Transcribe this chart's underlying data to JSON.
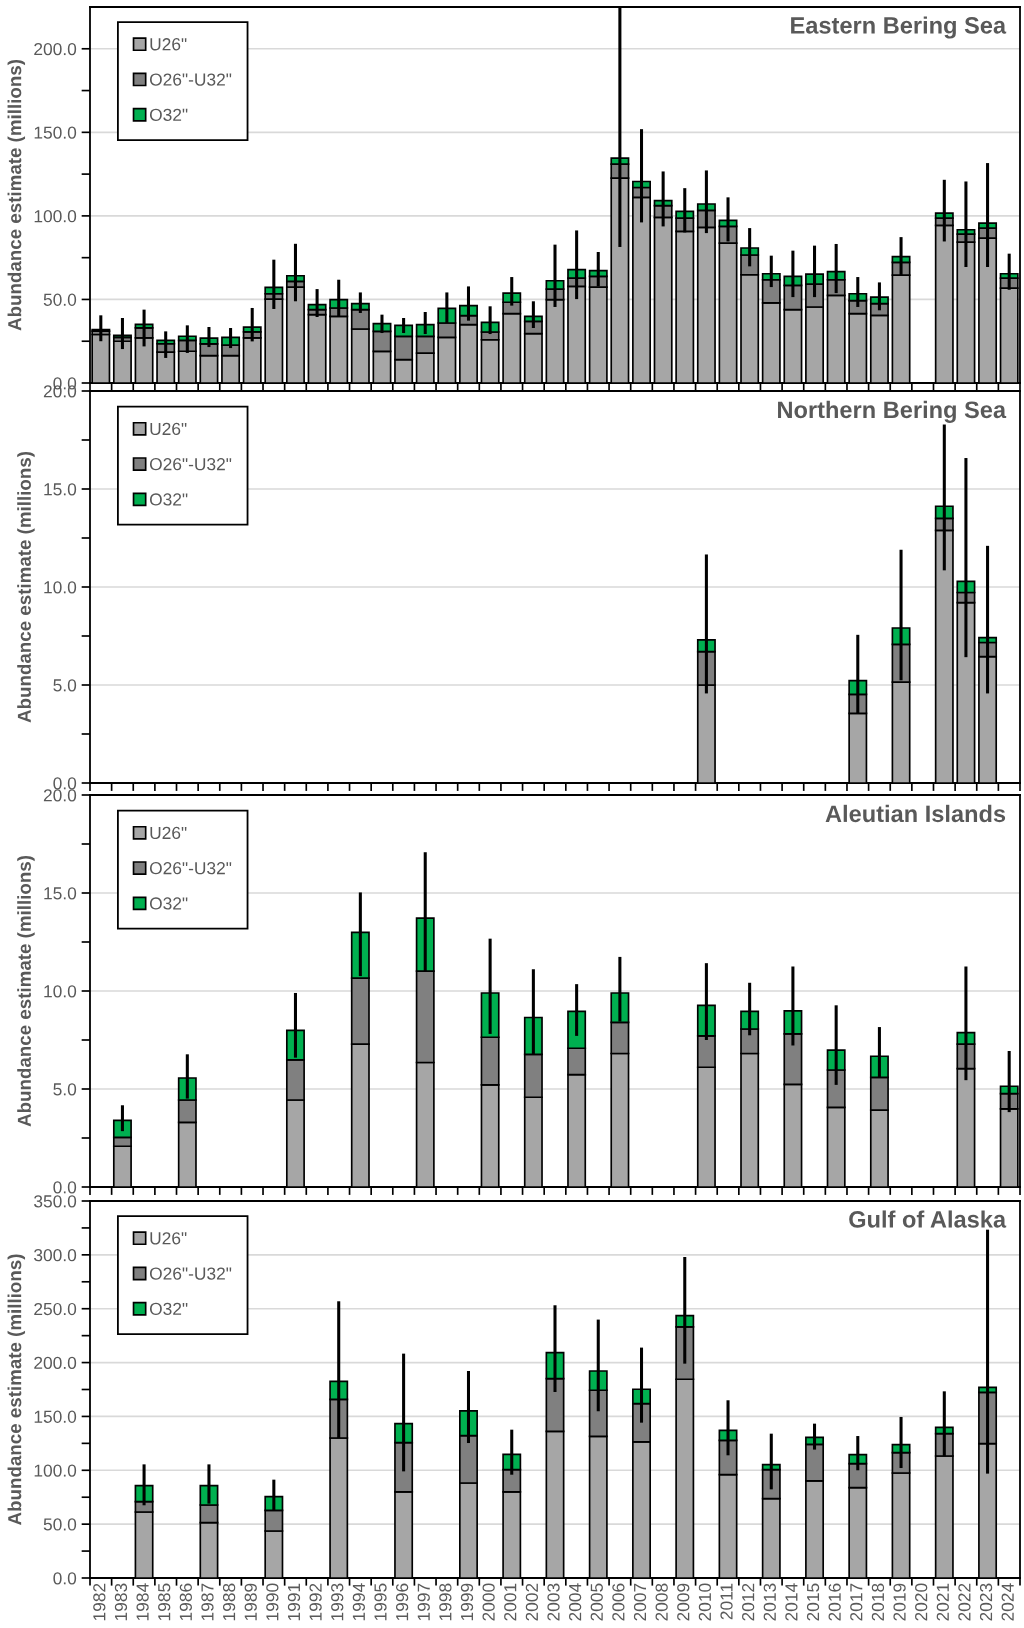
{
  "chart_data": [
    {
      "type": "bar",
      "title": "Eastern Bering Sea",
      "ylabel": "Abundance estimate (millions)",
      "stacked": true,
      "grid": "y",
      "legend": "top left",
      "tick_labels": "y",
      "categories": [
        "1982",
        "1983",
        "1984",
        "1985",
        "1986",
        "1987",
        "1988",
        "1989",
        "1990",
        "1991",
        "1992",
        "1993",
        "1994",
        "1995",
        "1996",
        "1997",
        "1998",
        "1999",
        "2000",
        "2001",
        "2002",
        "2003",
        "2004",
        "2005",
        "2006",
        "2007",
        "2008",
        "2009",
        "2010",
        "2011",
        "2012",
        "2013",
        "2014",
        "2015",
        "2016",
        "2017",
        "2018",
        "2019",
        "2020",
        "2021",
        "2022",
        "2023",
        "2024"
      ],
      "ylim": [
        0,
        225
      ],
      "yticks": [
        {
          "value": 0,
          "label": "0.0"
        },
        {
          "value": 25,
          "label": null
        },
        {
          "value": 50,
          "label": "50.0"
        },
        {
          "value": 75,
          "label": null
        },
        {
          "value": 100,
          "label": "100.0"
        },
        {
          "value": 125,
          "label": null
        },
        {
          "value": 150,
          "label": "150.0"
        },
        {
          "value": 175,
          "label": null
        },
        {
          "value": 200,
          "label": "200.0"
        }
      ],
      "series": [
        {
          "name": "U26\"",
          "color": "#a6a6a6",
          "values": [
            29,
            25,
            27,
            18.5,
            19,
            16.4,
            16.4,
            27,
            50.2,
            57.4,
            40.9,
            39.9,
            32.3,
            18.9,
            14,
            17.9,
            27.3,
            34.9,
            25.9,
            41.5,
            29.5,
            49.9,
            57.8,
            57.4,
            122.6,
            111.1,
            99.1,
            90.7,
            93.1,
            83.7,
            64.8,
            47.9,
            43.9,
            45.5,
            52.4,
            41.5,
            40.5,
            64.6,
            null,
            94.3,
            84.3,
            86.7,
            56.8
          ]
        },
        {
          "name": "O26\"-U32\"",
          "color": "#808080",
          "values": [
            2,
            2.3,
            6,
            5,
            6.5,
            7,
            6.3,
            3.6,
            3.2,
            3.4,
            3,
            5,
            11.6,
            12,
            13.9,
            10,
            8.6,
            5.4,
            4.6,
            6.8,
            7.4,
            6.3,
            5,
            6.4,
            8.4,
            5.9,
            7,
            8,
            10.2,
            10,
            11.8,
            13.9,
            14.5,
            13.7,
            9.4,
            7.8,
            7,
            7.6,
            null,
            4.4,
            4.8,
            6,
            6
          ]
        },
        {
          "name": "O32\"",
          "color": "#00b050",
          "values": [
            1,
            1.2,
            2.1,
            2,
            2.5,
            3.5,
            4.6,
            2.8,
            3.8,
            3.4,
            3,
            5,
            3.6,
            4.6,
            6.6,
            7,
            8.8,
            6,
            5.8,
            5.5,
            3,
            5,
            5,
            3.4,
            3.6,
            3.6,
            3,
            4,
            3.8,
            3.6,
            4.2,
            3.6,
            5.4,
            6,
            4.8,
            4.1,
            3.9,
            3.4,
            null,
            3,
            2.6,
            3,
            2.6
          ],
          "errors": [
            [
              25,
              40.5
            ],
            [
              20.3,
              38.9
            ],
            [
              21.9,
              43.9
            ],
            [
              15,
              30.9
            ],
            [
              18,
              34.5
            ],
            [
              21.5,
              33.5
            ],
            [
              20.9,
              32.9
            ],
            [
              24.9,
              44.9
            ],
            [
              44.3,
              73.8
            ],
            [
              48.9,
              83.3
            ],
            [
              39.5,
              56.2
            ],
            [
              39.9,
              61.8
            ],
            [
              41.9,
              54.2
            ],
            [
              29.9,
              40.9
            ],
            [
              29.9,
              38.9
            ],
            [
              29.3,
              42.5
            ],
            [
              35.9,
              54.2
            ],
            [
              37.3,
              57.8
            ],
            [
              29.3,
              45.9
            ],
            [
              46.3,
              63.4
            ],
            [
              32.9,
              48.9
            ],
            [
              45.5,
              82.8
            ],
            [
              50.2,
              91.3
            ],
            [
              57.8,
              78.4
            ],
            [
              81.4,
              225
            ],
            [
              96.1,
              151.9
            ],
            [
              93.7,
              126.6
            ],
            [
              90.1,
              116.6
            ],
            [
              89.7,
              127.2
            ],
            [
              84.7,
              111.1
            ],
            [
              69.8,
              92.7
            ],
            [
              57.4,
              76.2
            ],
            [
              51.4,
              79.2
            ],
            [
              51.4,
              82.2
            ],
            [
              53.8,
              83.2
            ],
            [
              45.5,
              63.4
            ],
            [
              43.5,
              60.2
            ],
            [
              64.6,
              87.3
            ],
            null,
            [
              84.7,
              121.6
            ],
            [
              69.4,
              120.6
            ],
            [
              69.4,
              131.6
            ],
            [
              55.8,
              77.4
            ]
          ]
        }
      ]
    },
    {
      "type": "bar",
      "title": "Northern Bering Sea",
      "ylabel": "Abundance estimate (millions)",
      "stacked": true,
      "grid": "y",
      "legend": "top left",
      "tick_labels": "y",
      "categories": [
        "1982",
        "1983",
        "1984",
        "1985",
        "1986",
        "1987",
        "1988",
        "1989",
        "1990",
        "1991",
        "1992",
        "1993",
        "1994",
        "1995",
        "1996",
        "1997",
        "1998",
        "1999",
        "2000",
        "2001",
        "2002",
        "2003",
        "2004",
        "2005",
        "2006",
        "2007",
        "2008",
        "2009",
        "2010",
        "2011",
        "2012",
        "2013",
        "2014",
        "2015",
        "2016",
        "2017",
        "2018",
        "2019",
        "2020",
        "2021",
        "2022",
        "2023",
        "2024"
      ],
      "ylim": [
        0,
        20
      ],
      "yticks": [
        {
          "value": 0,
          "label": "0.0"
        },
        {
          "value": 2.5,
          "label": null
        },
        {
          "value": 5,
          "label": "5.0"
        },
        {
          "value": 7.5,
          "label": null
        },
        {
          "value": 10,
          "label": "10.0"
        },
        {
          "value": 12.5,
          "label": null
        },
        {
          "value": 15,
          "label": "15.0"
        },
        {
          "value": 17.5,
          "label": null
        },
        {
          "value": 20,
          "label": "20.0"
        }
      ],
      "series": [
        {
          "name": "U26\"",
          "color": "#a6a6a6",
          "values": [
            null,
            null,
            null,
            null,
            null,
            null,
            null,
            null,
            null,
            null,
            null,
            null,
            null,
            null,
            null,
            null,
            null,
            null,
            null,
            null,
            null,
            null,
            null,
            null,
            null,
            null,
            null,
            null,
            5,
            null,
            null,
            null,
            null,
            null,
            null,
            3.55,
            null,
            5.15,
            null,
            12.89,
            9.2,
            6.45,
            null
          ]
        },
        {
          "name": "O26\"-U32\"",
          "color": "#808080",
          "values": [
            null,
            null,
            null,
            null,
            null,
            null,
            null,
            null,
            null,
            null,
            null,
            null,
            null,
            null,
            null,
            null,
            null,
            null,
            null,
            null,
            null,
            null,
            null,
            null,
            null,
            null,
            null,
            null,
            1.7,
            null,
            null,
            null,
            null,
            null,
            null,
            0.97,
            null,
            1.92,
            null,
            0.61,
            0.52,
            0.72,
            null
          ]
        },
        {
          "name": "O32\"",
          "color": "#00b050",
          "values": [
            null,
            null,
            null,
            null,
            null,
            null,
            null,
            null,
            null,
            null,
            null,
            null,
            null,
            null,
            null,
            null,
            null,
            null,
            null,
            null,
            null,
            null,
            null,
            null,
            null,
            null,
            null,
            null,
            0.6,
            null,
            null,
            null,
            null,
            null,
            null,
            0.7,
            null,
            0.84,
            null,
            0.62,
            0.57,
            0.25,
            null
          ],
          "errors": [
            null,
            null,
            null,
            null,
            null,
            null,
            null,
            null,
            null,
            null,
            null,
            null,
            null,
            null,
            null,
            null,
            null,
            null,
            null,
            null,
            null,
            null,
            null,
            null,
            null,
            null,
            null,
            null,
            [
              4.57,
              11.66
            ],
            null,
            null,
            null,
            null,
            null,
            null,
            [
              3.55,
              7.56
            ],
            null,
            [
              5.24,
              11.9
            ],
            null,
            [
              10.85,
              18.29
            ],
            [
              6.42,
              16.58
            ],
            [
              4.57,
              12.1
            ],
            null
          ]
        }
      ]
    },
    {
      "type": "bar",
      "title": "Aleutian Islands",
      "ylabel": "Abundance estimate (millions)",
      "stacked": true,
      "grid": "y",
      "legend": "top left",
      "tick_labels": "y",
      "categories": [
        "1982",
        "1983",
        "1984",
        "1985",
        "1986",
        "1987",
        "1988",
        "1989",
        "1990",
        "1991",
        "1992",
        "1993",
        "1994",
        "1995",
        "1996",
        "1997",
        "1998",
        "1999",
        "2000",
        "2001",
        "2002",
        "2003",
        "2004",
        "2005",
        "2006",
        "2007",
        "2008",
        "2009",
        "2010",
        "2011",
        "2012",
        "2013",
        "2014",
        "2015",
        "2016",
        "2017",
        "2018",
        "2019",
        "2020",
        "2021",
        "2022",
        "2023",
        "2024"
      ],
      "ylim": [
        0,
        20
      ],
      "yticks": [
        {
          "value": 0,
          "label": "0.0"
        },
        {
          "value": 2.5,
          "label": null
        },
        {
          "value": 5,
          "label": "5.0"
        },
        {
          "value": 7.5,
          "label": null
        },
        {
          "value": 10,
          "label": "10.0"
        },
        {
          "value": 12.5,
          "label": null
        },
        {
          "value": 15,
          "label": "15.0"
        },
        {
          "value": 17.5,
          "label": null
        },
        {
          "value": 20,
          "label": "20.0"
        }
      ],
      "series": [
        {
          "name": "U26\"",
          "color": "#a6a6a6",
          "values": [
            null,
            2.08,
            null,
            null,
            3.3,
            null,
            null,
            null,
            null,
            4.44,
            null,
            null,
            7.29,
            null,
            null,
            6.35,
            null,
            null,
            5.21,
            null,
            4.58,
            null,
            5.73,
            null,
            6.81,
            null,
            null,
            null,
            6.11,
            null,
            6.81,
            null,
            5.24,
            null,
            4.06,
            null,
            3.92,
            null,
            null,
            null,
            6.04,
            null,
            3.99
          ]
        },
        {
          "name": "O26\"-U32\"",
          "color": "#808080",
          "values": [
            null,
            0.45,
            null,
            null,
            1.14,
            null,
            null,
            null,
            null,
            2.05,
            null,
            null,
            3.37,
            null,
            null,
            4.66,
            null,
            null,
            2.43,
            null,
            2.19,
            null,
            1.35,
            null,
            1.59,
            null,
            null,
            null,
            1.6,
            null,
            1.25,
            null,
            2.57,
            null,
            1.91,
            null,
            1.67,
            null,
            null,
            null,
            1.25,
            null,
            0.77
          ]
        },
        {
          "name": "O32\"",
          "color": "#00b050",
          "values": [
            null,
            0.87,
            null,
            null,
            1.12,
            null,
            null,
            null,
            null,
            1.5,
            null,
            null,
            2.33,
            null,
            null,
            2.71,
            null,
            null,
            2.26,
            null,
            1.88,
            null,
            1.88,
            null,
            1.5,
            null,
            null,
            null,
            1.56,
            null,
            0.9,
            null,
            1.18,
            null,
            1.01,
            null,
            1.08,
            null,
            null,
            null,
            0.59,
            null,
            0.38
          ],
          "errors": [
            null,
            [
              2.85,
              4.17
            ],
            null,
            null,
            [
              4.51,
              6.77
            ],
            null,
            null,
            null,
            null,
            [
              6.6,
              9.9
            ],
            null,
            null,
            [
              10.76,
              15.03
            ],
            null,
            null,
            [
              11.01,
              17.08
            ],
            null,
            null,
            [
              7.81,
              12.67
            ],
            null,
            [
              6.77,
              11.11
            ],
            null,
            [
              7.71,
              10.35
            ],
            null,
            [
              8.44,
              11.74
            ],
            null,
            null,
            null,
            [
              7.5,
              11.42
            ],
            null,
            [
              7.74,
              10.42
            ],
            null,
            [
              7.22,
              11.25
            ],
            null,
            [
              5.21,
              9.27
            ],
            null,
            [
              5.56,
              8.16
            ],
            null,
            null,
            null,
            [
              5.45,
              11.25
            ],
            null,
            [
              3.82,
              6.94
            ]
          ]
        }
      ]
    },
    {
      "type": "bar",
      "title": "Gulf of Alaska",
      "ylabel": "Abundance estimate (millions)",
      "stacked": true,
      "grid": "y",
      "legend": "top left",
      "categories": [
        "1982",
        "1983",
        "1984",
        "1985",
        "1986",
        "1987",
        "1988",
        "1989",
        "1990",
        "1991",
        "1992",
        "1993",
        "1994",
        "1995",
        "1996",
        "1997",
        "1998",
        "1999",
        "2000",
        "2001",
        "2002",
        "2003",
        "2004",
        "2005",
        "2006",
        "2007",
        "2008",
        "2009",
        "2010",
        "2011",
        "2012",
        "2013",
        "2014",
        "2015",
        "2016",
        "2017",
        "2018",
        "2019",
        "2020",
        "2021",
        "2022",
        "2023",
        "2024"
      ],
      "ylim": [
        0,
        350
      ],
      "yticks": [
        {
          "value": 0,
          "label": "0.0"
        },
        {
          "value": 25,
          "label": null
        },
        {
          "value": 50,
          "label": "50.0"
        },
        {
          "value": 75,
          "label": null
        },
        {
          "value": 100,
          "label": "100.0"
        },
        {
          "value": 125,
          "label": null
        },
        {
          "value": 150,
          "label": "150.0"
        },
        {
          "value": 175,
          "label": null
        },
        {
          "value": 200,
          "label": "200.0"
        },
        {
          "value": 225,
          "label": null
        },
        {
          "value": 250,
          "label": "250.0"
        },
        {
          "value": 275,
          "label": null
        },
        {
          "value": 300,
          "label": "300.0"
        },
        {
          "value": 325,
          "label": null
        },
        {
          "value": 350,
          "label": "350.0"
        }
      ],
      "series": [
        {
          "name": "U26\"",
          "color": "#a6a6a6",
          "values": [
            null,
            null,
            61.3,
            null,
            null,
            51.4,
            null,
            null,
            43.6,
            null,
            null,
            130,
            null,
            null,
            79.9,
            null,
            null,
            88.2,
            null,
            79.9,
            null,
            136.2,
            null,
            131.5,
            null,
            126.3,
            null,
            184.5,
            null,
            95.9,
            null,
            73.7,
            null,
            90.1,
            null,
            83.9,
            null,
            97.5,
            null,
            113.3,
            null,
            124.7,
            null
          ]
        },
        {
          "name": "O26\"-U32\"",
          "color": "#808080",
          "values": [
            null,
            null,
            9.6,
            null,
            null,
            16.4,
            null,
            null,
            19.2,
            null,
            null,
            35.9,
            null,
            null,
            45.8,
            null,
            null,
            44,
            null,
            20.7,
            null,
            48.9,
            null,
            42.8,
            null,
            35.6,
            null,
            48.6,
            null,
            31.9,
            null,
            26.9,
            null,
            34,
            null,
            22.3,
            null,
            18.9,
            null,
            20.7,
            null,
            47.7,
            null
          ]
        },
        {
          "name": "O32\"",
          "color": "#00b050",
          "values": [
            null,
            null,
            14.8,
            null,
            null,
            17.9,
            null,
            null,
            12.7,
            null,
            null,
            16.7,
            null,
            null,
            17.6,
            null,
            null,
            22.9,
            null,
            14.2,
            null,
            24.1,
            null,
            17.9,
            null,
            13.3,
            null,
            10.5,
            null,
            9.3,
            null,
            4.6,
            null,
            6.5,
            null,
            8.3,
            null,
            7.4,
            null,
            5.9,
            null,
            4.6,
            null
          ],
          "errors": [
            null,
            null,
            [
              67.5,
              105.5
            ],
            null,
            null,
            [
              69,
              105.5
            ],
            null,
            null,
            [
              62.8,
              91.3
            ],
            null,
            null,
            [
              130,
              256.9
            ],
            null,
            null,
            [
              99,
              208.3
            ],
            null,
            null,
            [
              125.3,
              192.2
            ],
            null,
            [
              95.9,
              137.7
            ],
            null,
            [
              172.7,
              253.2
            ],
            null,
            [
              154.8,
              239.9
            ],
            null,
            [
              144.2,
              213.9
            ],
            null,
            [
              199,
              298
            ],
            null,
            [
              113.9,
              165
            ],
            null,
            [
              82.3,
              134
            ],
            null,
            [
              119.2,
              143.3
            ],
            null,
            [
              100,
              131.8
            ],
            null,
            [
              102.1,
              149.5
            ],
            null,
            [
              113,
              173.3
            ],
            null,
            [
              96.9,
              323.4
            ],
            null
          ]
        }
      ]
    }
  ]
}
